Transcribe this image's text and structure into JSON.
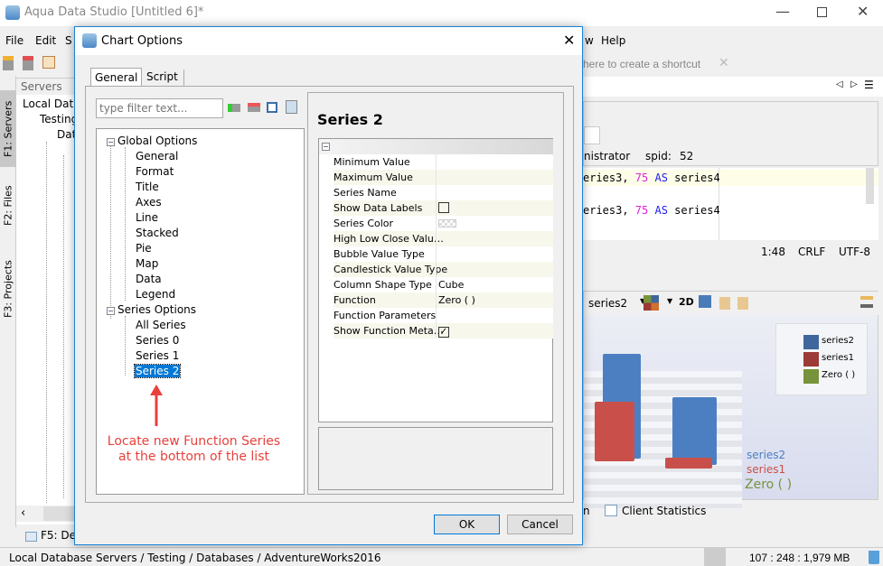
{
  "window": {
    "title": "Aqua Data Studio [Untitled 6]*",
    "controls": [
      "minimize",
      "maximize",
      "close"
    ]
  },
  "menu": [
    "File",
    "Edit",
    "S",
    "w",
    "Help"
  ],
  "side_tabs": [
    "F1: Servers",
    "F2: Files",
    "F3: Projects"
  ],
  "servers_panel": {
    "header": "Servers",
    "items": [
      "Local Datab",
      "Testing",
      "Dat"
    ]
  },
  "bottom_tab": "F5: Det",
  "status": {
    "path": "Local Database Servers / Testing / Databases / AdventureWorks2016",
    "memory": "107 : 248 : 1,979 MB"
  },
  "shortcut_bar": {
    "text": "here to create a shortcut"
  },
  "editor": {
    "user": "nistrator",
    "spid_label": "spid:",
    "spid": "52",
    "lines": [
      {
        "a": "eries3, ",
        "n": "75",
        "k": " AS",
        "b": " series4"
      },
      {
        "a": "eries3, ",
        "n": "75",
        "k": " AS",
        "b": " series4"
      }
    ],
    "position": "1:48",
    "line_ending": "CRLF",
    "encoding": "UTF-8"
  },
  "chart_panel": {
    "series_select": "series2",
    "mode_2d": "2D",
    "legend": [
      {
        "name": "series2",
        "color": "#3f679e"
      },
      {
        "name": "series1",
        "color": "#9b3a37"
      },
      {
        "name": "Zero ( )",
        "color": "#77933c"
      }
    ],
    "axis_labels": [
      "series2",
      "series1",
      "Zero (  )"
    ]
  },
  "result_tabs": [
    "n",
    "Client Statistics"
  ],
  "dialog": {
    "title": "Chart Options",
    "tabs": [
      "General",
      "Script"
    ],
    "filter_placeholder": "type filter text...",
    "tree": {
      "global": "Global Options",
      "global_children": [
        "General",
        "Format",
        "Title",
        "Axes",
        "Line",
        "Stacked",
        "Pie",
        "Map",
        "Data",
        "Legend"
      ],
      "series": "Series Options",
      "series_children": [
        "All Series",
        "Series 0",
        "Series 1",
        "Series 2"
      ],
      "selected": "Series 2"
    },
    "panel_title": "Series 2",
    "properties": [
      {
        "name": "Minimum Value",
        "value": ""
      },
      {
        "name": "Maximum Value",
        "value": ""
      },
      {
        "name": "Series Name",
        "value": ""
      },
      {
        "name": "Show Data Labels",
        "value": "",
        "checkbox": false
      },
      {
        "name": "Series Color",
        "value": "",
        "swatch": true
      },
      {
        "name": "High Low Close Valu…",
        "value": ""
      },
      {
        "name": "Bubble Value Type",
        "value": ""
      },
      {
        "name": "Candlestick Value Type",
        "value": ""
      },
      {
        "name": "Column Shape Type",
        "value": "Cube"
      },
      {
        "name": "Function",
        "value": "Zero ( )"
      },
      {
        "name": "Function Parameters",
        "value": ""
      },
      {
        "name": "Show Function Meta…",
        "value": "",
        "checkbox": true
      }
    ],
    "annotation": {
      "line1": "Locate new Function Series",
      "line2": "at the bottom of the list",
      "color": "#e8413c"
    },
    "ok": "OK",
    "cancel": "Cancel"
  }
}
